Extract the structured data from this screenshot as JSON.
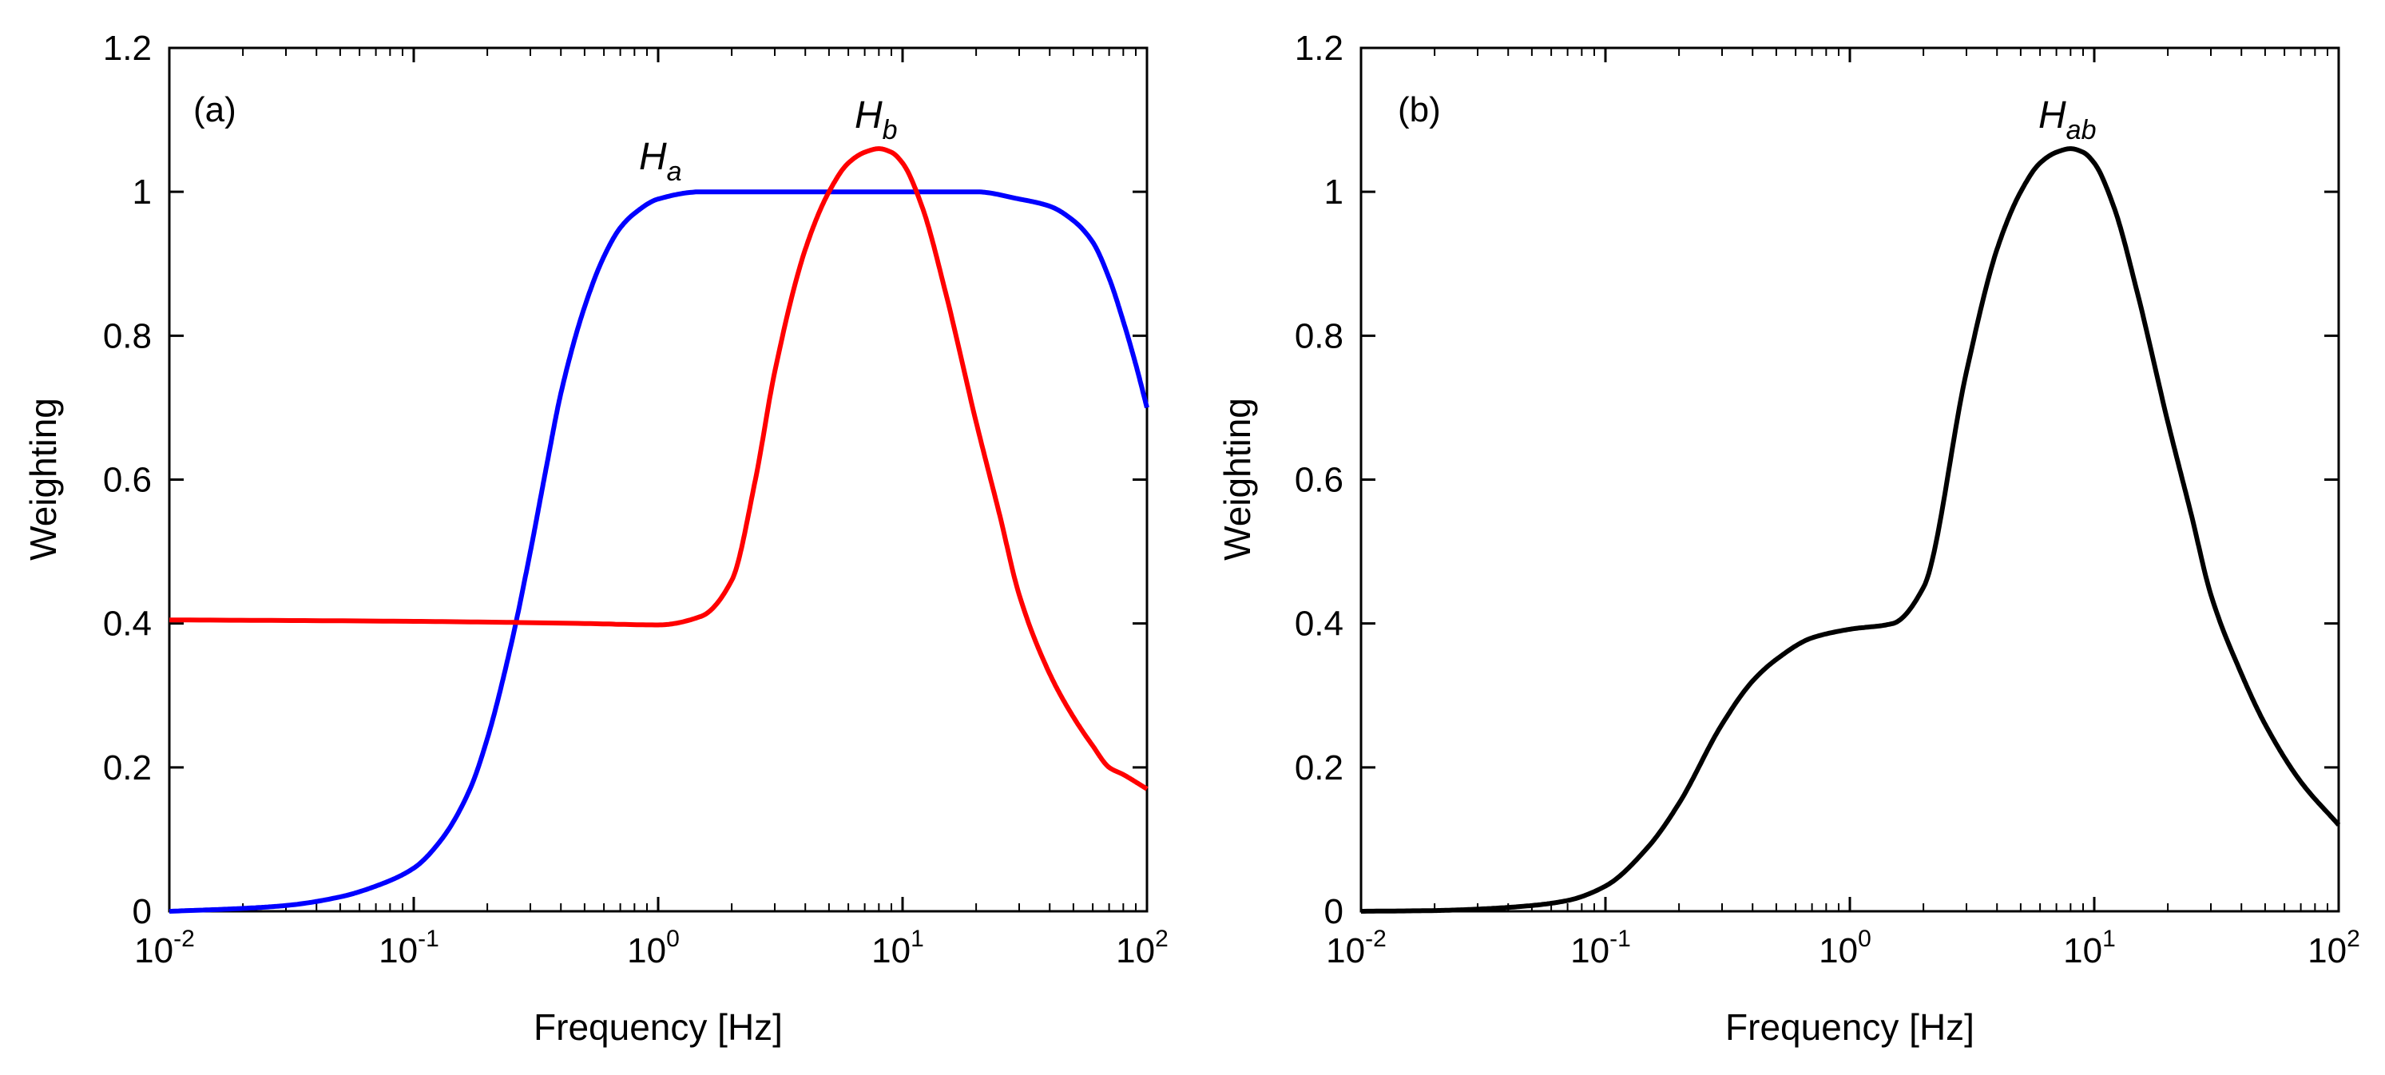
{
  "chart_data": [
    {
      "type": "line",
      "panel_label": "(a)",
      "xlabel": "Frequency [Hz]",
      "ylabel": "Weighting",
      "xscale": "log",
      "xlim": [
        0.01,
        100
      ],
      "ylim": [
        0,
        1.2
      ],
      "xticks": [
        {
          "base": "10",
          "exp": "-2"
        },
        {
          "base": "10",
          "exp": "-1"
        },
        {
          "base": "10",
          "exp": "0"
        },
        {
          "base": "10",
          "exp": "1"
        },
        {
          "base": "10",
          "exp": "2"
        }
      ],
      "yticks": [
        "0",
        "0.2",
        "0.4",
        "0.6",
        "0.8",
        "1",
        "1.2"
      ],
      "grid": false,
      "series": [
        {
          "name": "H_a",
          "label_main": "H",
          "label_sub": "a",
          "color": "#0000ff",
          "x": [
            0.01,
            0.02,
            0.03,
            0.05,
            0.07,
            0.1,
            0.13,
            0.17,
            0.2,
            0.25,
            0.3,
            0.35,
            0.4,
            0.5,
            0.6,
            0.7,
            0.8,
            1.0,
            1.5,
            2,
            5,
            10,
            20,
            30,
            40,
            50,
            60,
            70,
            80,
            90,
            100
          ],
          "y": [
            0.0,
            0.004,
            0.008,
            0.02,
            0.035,
            0.06,
            0.1,
            0.17,
            0.24,
            0.37,
            0.5,
            0.62,
            0.72,
            0.84,
            0.91,
            0.95,
            0.97,
            0.99,
            1.0,
            1.0,
            1.0,
            1.0,
            1.0,
            0.99,
            0.98,
            0.96,
            0.93,
            0.88,
            0.82,
            0.76,
            0.7
          ]
        },
        {
          "name": "H_b",
          "label_main": "H",
          "label_sub": "b",
          "color": "#ff0000",
          "x": [
            0.01,
            0.1,
            0.5,
            1.0,
            1.5,
            2,
            2.5,
            3,
            4,
            5,
            6,
            7,
            8,
            9,
            10,
            12,
            15,
            20,
            25,
            30,
            40,
            50,
            60,
            70,
            80,
            100
          ],
          "y": [
            0.405,
            0.403,
            0.4,
            0.398,
            0.41,
            0.46,
            0.6,
            0.75,
            0.92,
            1.0,
            1.04,
            1.055,
            1.06,
            1.055,
            1.04,
            0.98,
            0.86,
            0.68,
            0.55,
            0.44,
            0.33,
            0.27,
            0.23,
            0.2,
            0.19,
            0.17
          ]
        }
      ]
    },
    {
      "type": "line",
      "panel_label": "(b)",
      "xlabel": "Frequency [Hz]",
      "ylabel": "Weighting",
      "xscale": "log",
      "xlim": [
        0.01,
        100
      ],
      "ylim": [
        0,
        1.2
      ],
      "xticks": [
        {
          "base": "10",
          "exp": "-2"
        },
        {
          "base": "10",
          "exp": "-1"
        },
        {
          "base": "10",
          "exp": "0"
        },
        {
          "base": "10",
          "exp": "1"
        },
        {
          "base": "10",
          "exp": "2"
        }
      ],
      "yticks": [
        "0",
        "0.2",
        "0.4",
        "0.6",
        "0.8",
        "1",
        "1.2"
      ],
      "grid": false,
      "series": [
        {
          "name": "H_ab",
          "label_main": "H",
          "label_sub": "ab",
          "color": "#000000",
          "x": [
            0.01,
            0.02,
            0.03,
            0.05,
            0.07,
            0.1,
            0.15,
            0.2,
            0.3,
            0.4,
            0.5,
            0.7,
            1.0,
            1.5,
            2,
            3,
            4,
            5,
            6,
            7,
            8,
            9,
            10,
            12,
            15,
            20,
            25,
            30,
            40,
            50,
            70,
            100
          ],
          "y": [
            0.0,
            0.001,
            0.003,
            0.008,
            0.015,
            0.035,
            0.09,
            0.15,
            0.26,
            0.32,
            0.35,
            0.38,
            0.392,
            0.4,
            0.45,
            0.75,
            0.92,
            1.0,
            1.04,
            1.055,
            1.06,
            1.055,
            1.04,
            0.98,
            0.86,
            0.68,
            0.55,
            0.44,
            0.33,
            0.26,
            0.18,
            0.12
          ]
        }
      ]
    }
  ]
}
